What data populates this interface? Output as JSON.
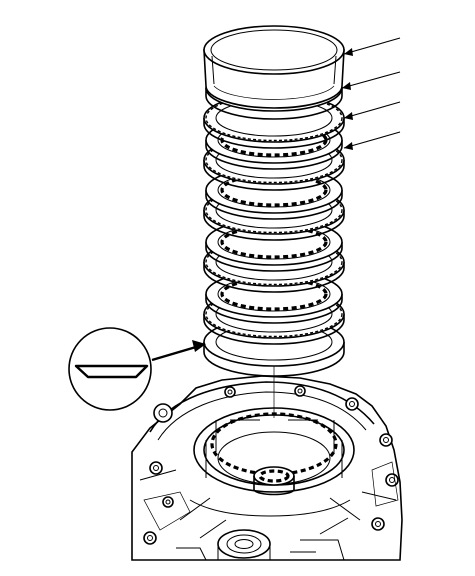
{
  "figure": {
    "kind": "exploded-view line illustration",
    "subject_icons": [
      "clutch-pack-icon",
      "transmission-housing-icon",
      "chamfer-detail-icon"
    ],
    "clutch_pack": {
      "parts_top_to_bottom": [
        "clutch-end-plate",
        "clutch-disc",
        "clutch-plate",
        "clutch-disc",
        "clutch-plate",
        "clutch-disc",
        "clutch-plate",
        "clutch-disc",
        "clutch-plate",
        "clutch-disc",
        "clutch-plate",
        "waved-plate"
      ]
    },
    "callouts": {
      "count": 4
    },
    "detail_view": {
      "shape": "circle",
      "content": "chamfered-edge-section"
    },
    "colors": {
      "line": "#000000",
      "background": "#ffffff"
    }
  }
}
